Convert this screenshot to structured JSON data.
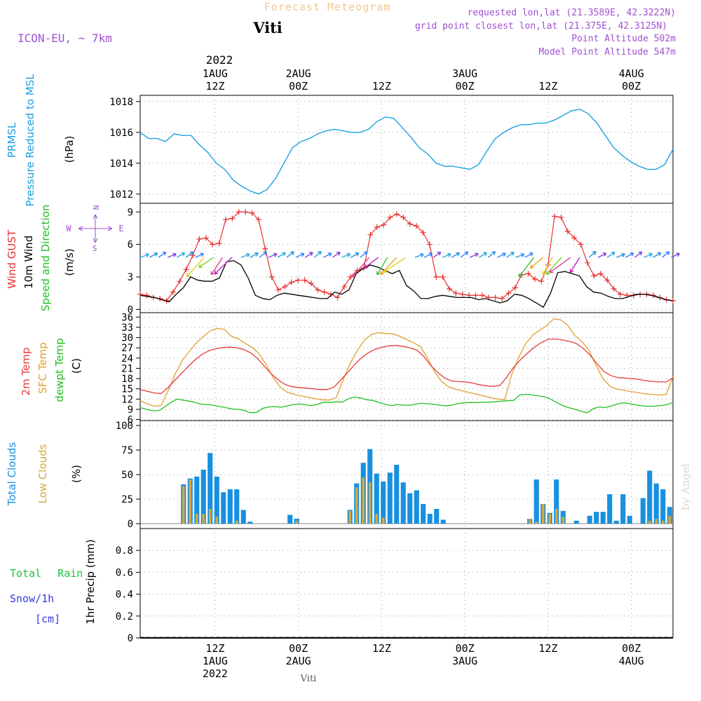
{
  "header": {
    "top_title": "Forecast Meteogram",
    "location": "Viti",
    "model": "ICON-EU, ~ 7km",
    "requested": "requested lon,lat (21.3589E, 42.3222N)",
    "grid_point": "grid point closest lon,lat (21.375E, 42.3125N)",
    "point_alt": "Point Altitude 502m",
    "model_alt": "Model Point Altitude 547m",
    "credit": "by Angel",
    "footer": "Viti"
  },
  "colors": {
    "pressure": "#1ca0e0",
    "gust": "#e83030",
    "wind": "#000000",
    "temp2m": "#e83a3a",
    "sfc": "#e0a030",
    "dewpt": "#20c020",
    "total_cloud": "#1890e0",
    "low_cloud": "#d4a840",
    "rain": "#20c040",
    "snow": "#3838e0",
    "label_purple": "#a050d0"
  },
  "time_axis": {
    "x_range": [
      0,
      64
    ],
    "top_year_label": "2022",
    "ticks": [
      {
        "x": 9,
        "top": "1AUG",
        "bottom": "12Z",
        "bottom2": "1AUG",
        "bottom3": "2022"
      },
      {
        "x": 19,
        "top": "2AUG",
        "bottom": "00Z",
        "bottom2": "2AUG"
      },
      {
        "x": 29,
        "top": "",
        "bottom": "12Z",
        "bottom2": ""
      },
      {
        "x": 39,
        "top": "3AUG",
        "bottom": "00Z",
        "bottom2": "3AUG"
      },
      {
        "x": 49,
        "top": "",
        "bottom": "12Z",
        "bottom2": ""
      },
      {
        "x": 59,
        "top": "4AUG",
        "bottom": "00Z",
        "bottom2": "4AUG"
      }
    ],
    "top_hours": [
      "12Z",
      "00Z",
      "12Z",
      "00Z",
      "12Z",
      "00Z"
    ]
  },
  "chart_data": [
    {
      "type": "line",
      "id": "pressure",
      "ylabel_lines": [
        "PRMSL",
        "Pressure Reduced to MSL"
      ],
      "unit": "(hPa)",
      "ylim": [
        1011.4,
        1018.4
      ],
      "yticks": [
        1012,
        1014,
        1016,
        1018
      ],
      "series": [
        {
          "values": [
            1016.0,
            1015.6,
            1015.6,
            1015.4,
            1015.9,
            1015.8,
            1015.8,
            1015.2,
            1014.7,
            1014.0,
            1013.6,
            1012.9,
            1012.5,
            1012.2,
            1012.0,
            1012.3,
            1013.0,
            1014.0,
            1015.0,
            1015.4,
            1015.6,
            1015.9,
            1016.1,
            1016.2,
            1016.1,
            1016.0,
            1016.0,
            1016.2,
            1016.7,
            1017.0,
            1016.9,
            1016.3,
            1015.7,
            1015.0,
            1014.6,
            1014.0,
            1013.8,
            1013.8,
            1013.7,
            1013.6,
            1013.9,
            1014.8,
            1015.6,
            1016.0,
            1016.3,
            1016.5,
            1016.5,
            1016.6,
            1016.6,
            1016.8,
            1017.1,
            1017.4,
            1017.5,
            1017.2,
            1016.6,
            1015.8,
            1015.0,
            1014.5,
            1014.1,
            1013.8,
            1013.6,
            1013.6,
            1013.9,
            1014.9
          ]
        }
      ]
    },
    {
      "type": "line",
      "id": "wind",
      "ylabel_lines": [
        "Wind GUST",
        "10m Wind",
        "Speed and Direction"
      ],
      "unit": "(m/s)",
      "compass": [
        "N",
        "W",
        "E",
        "S"
      ],
      "ylim": [
        -0.3,
        9.8
      ],
      "yticks": [
        0,
        3,
        6,
        9
      ],
      "series": [
        {
          "name": "Wind GUST",
          "values": [
            1.4,
            1.3,
            1.1,
            1.0,
            0.8,
            1.6,
            2.6,
            3.7,
            5.0,
            6.5,
            6.6,
            6.0,
            6.1,
            8.3,
            8.4,
            9.0,
            9.0,
            8.9,
            8.3,
            5.6,
            3.0,
            1.8,
            2.1,
            2.5,
            2.7,
            2.7,
            2.4,
            1.8,
            1.6,
            1.4,
            1.1,
            2.1,
            3.0,
            3.6,
            3.8,
            6.9,
            7.6,
            7.8,
            8.5,
            8.8,
            8.5,
            7.9,
            7.7,
            7.1,
            6.0,
            3.0,
            3.0,
            1.9,
            1.5,
            1.4,
            1.3,
            1.3,
            1.3,
            1.1,
            1.1,
            1.0,
            1.5,
            2.0,
            3.2,
            3.3,
            2.8,
            2.6,
            4.1,
            8.6,
            8.5,
            7.2,
            6.6,
            6.0,
            4.3,
            3.1,
            3.3,
            2.7,
            1.9,
            1.4,
            1.3,
            1.3,
            1.4,
            1.4,
            1.3,
            1.1,
            0.9,
            0.8
          ]
        },
        {
          "name": "10m Wind",
          "values": [
            1.3,
            1.2,
            1.1,
            0.9,
            0.7,
            1.4,
            2.0,
            3.0,
            2.7,
            2.6,
            2.6,
            2.9,
            4.4,
            4.5,
            4.1,
            2.9,
            1.3,
            1.0,
            0.9,
            1.3,
            1.5,
            1.4,
            1.3,
            1.2,
            1.1,
            1.0,
            1.0,
            1.6,
            1.4,
            1.8,
            3.3,
            3.8,
            4.1,
            3.9,
            3.6,
            3.3,
            3.6,
            2.2,
            1.7,
            1.0,
            1.0,
            1.2,
            1.3,
            1.2,
            1.1,
            1.1,
            1.1,
            0.9,
            1.0,
            0.8,
            0.6,
            0.8,
            1.4,
            1.3,
            1.0,
            0.6,
            0.2,
            1.5,
            3.4,
            3.5,
            3.3,
            3.1,
            2.1,
            1.6,
            1.5,
            1.2,
            1.0,
            1.0,
            1.2,
            1.4,
            1.4,
            1.3,
            1.1,
            0.9,
            0.8
          ]
        }
      ]
    },
    {
      "type": "line",
      "id": "temperature",
      "ylabel_lines": [
        "2m Temp",
        "SFC Temp",
        "dewpt Temp"
      ],
      "unit": "(C)",
      "ylim": [
        5.7,
        37.3
      ],
      "yticks": [
        6,
        9,
        12,
        15,
        18,
        21,
        24,
        27,
        30,
        33,
        36
      ],
      "series": [
        {
          "name": "2m Temp",
          "values": [
            14.8,
            14.3,
            13.8,
            13.6,
            15.3,
            17.5,
            19.6,
            21.7,
            23.6,
            25.2,
            26.2,
            26.8,
            27.1,
            27.2,
            27.0,
            26.5,
            25.5,
            23.8,
            21.5,
            19.3,
            17.5,
            16.2,
            15.6,
            15.4,
            15.2,
            15.0,
            14.8,
            14.8,
            15.5,
            17.6,
            19.8,
            22.1,
            24.1,
            25.6,
            26.6,
            27.2,
            27.6,
            27.7,
            27.4,
            27.0,
            26.3,
            24.5,
            21.8,
            19.8,
            18.2,
            17.3,
            17.1,
            17.0,
            16.7,
            16.2,
            15.9,
            15.7,
            16.0,
            18.5,
            21.4,
            23.6,
            25.5,
            27.2,
            28.6,
            29.5,
            29.6,
            29.3,
            28.9,
            28.3,
            26.9,
            24.9,
            22.4,
            20.1,
            18.9,
            18.3,
            18.2,
            18.0,
            17.8,
            17.4,
            17.2,
            17.0,
            17.0,
            18.2
          ]
        },
        {
          "name": "SFC Temp",
          "values": [
            11.5,
            10.6,
            9.9,
            10.2,
            14.5,
            19.4,
            23.3,
            26.0,
            28.4,
            30.3,
            32.0,
            32.7,
            32.4,
            30.4,
            29.6,
            28.3,
            27.1,
            25.2,
            22.0,
            18.2,
            15.4,
            14.0,
            13.4,
            12.9,
            12.5,
            12.1,
            11.8,
            11.7,
            12.5,
            17.9,
            22.6,
            26.3,
            29.3,
            30.9,
            31.5,
            31.2,
            31.1,
            30.4,
            29.5,
            28.5,
            27.3,
            24.0,
            20.0,
            17.1,
            15.6,
            14.9,
            14.4,
            13.9,
            13.4,
            12.9,
            12.4,
            12.0,
            11.9,
            19.2,
            24.3,
            28.2,
            30.8,
            32.2,
            33.5,
            35.5,
            35.2,
            33.6,
            30.6,
            28.9,
            26.3,
            22.0,
            18.0,
            15.8,
            14.9,
            14.6,
            14.2,
            13.9,
            13.5,
            13.4,
            13.2,
            13.3,
            18.5
          ]
        },
        {
          "name": "dewpt Temp",
          "values": [
            9.5,
            9.0,
            8.6,
            8.6,
            9.7,
            11.0,
            12.0,
            11.7,
            11.4,
            11.0,
            10.5,
            10.4,
            10.2,
            9.8,
            9.5,
            9.1,
            9.0,
            8.7,
            8.0,
            8.1,
            9.3,
            9.7,
            9.8,
            9.6,
            10.0,
            10.4,
            10.6,
            10.3,
            10.1,
            10.5,
            11.1,
            11.0,
            11.2,
            11.1,
            12.1,
            12.6,
            12.3,
            11.8,
            11.6,
            11.0,
            10.5,
            10.1,
            10.4,
            10.2,
            10.2,
            10.5,
            10.8,
            10.6,
            10.5,
            10.2,
            10.0,
            10.3,
            10.7,
            10.9,
            11.0,
            11.0,
            11.1,
            11.1,
            11.2,
            11.4,
            11.5,
            11.6,
            13.2,
            13.4,
            13.2,
            12.9,
            12.7,
            12.0,
            11.0,
            10.1,
            9.5,
            9.0,
            8.4,
            8.0,
            9.2,
            9.7,
            9.5,
            10.0,
            10.6,
            10.9,
            10.6,
            10.3,
            10.0,
            9.9,
            9.9,
            10.1,
            10.4,
            11.0
          ]
        }
      ]
    },
    {
      "type": "bar",
      "id": "clouds",
      "ylabel_lines": [
        "Total Clouds",
        "Low Clouds"
      ],
      "unit": "(%)",
      "ylim": [
        -5,
        105
      ],
      "yticks": [
        0,
        25,
        50,
        75,
        100
      ],
      "bar_start_x": 0.5,
      "bar_step": 1,
      "series": [
        {
          "name": "Total Clouds",
          "values": [
            0,
            0,
            0,
            0,
            0,
            0,
            40,
            46,
            48,
            55,
            72,
            48,
            32,
            35,
            35,
            14,
            2,
            0,
            0,
            0,
            0,
            0,
            9,
            5,
            0,
            0,
            0,
            0,
            0,
            0,
            0,
            14,
            41,
            62,
            76,
            51,
            43,
            52,
            60,
            42,
            31,
            34,
            20,
            10,
            15,
            4,
            0,
            0,
            0,
            0,
            0,
            0,
            0,
            0,
            0,
            0,
            0,
            0,
            5,
            45,
            20,
            11,
            45,
            13,
            0,
            3,
            0,
            8,
            12,
            12,
            30,
            3,
            30,
            8,
            0,
            26,
            54,
            41,
            35,
            17
          ]
        },
        {
          "name": "Low Clouds",
          "values": [
            0,
            0,
            0,
            0,
            0,
            0,
            38,
            45,
            10,
            10,
            15,
            7,
            0,
            0,
            3,
            0,
            0,
            0,
            0,
            0,
            0,
            0,
            0,
            3,
            0,
            0,
            0,
            0,
            0,
            0,
            0,
            13,
            37,
            47,
            42,
            10,
            6,
            0,
            0,
            0,
            0,
            0,
            0,
            0,
            0,
            0,
            0,
            0,
            0,
            0,
            0,
            0,
            0,
            0,
            0,
            0,
            0,
            0,
            5,
            2,
            20,
            10,
            15,
            7,
            0,
            0,
            0,
            0,
            0,
            0,
            0,
            0,
            0,
            0,
            0,
            0,
            3,
            5,
            3,
            8
          ]
        }
      ]
    },
    {
      "type": "bar",
      "id": "precip",
      "ylabel_lines": [
        "Total Rain",
        "Snow/1h",
        "[cm]"
      ],
      "unit": "1hr Precip (mm)",
      "ylim": [
        0,
        1.0
      ],
      "yticks": [
        0,
        0.2,
        0.4,
        0.6,
        0.8
      ],
      "series": [
        {
          "name": "Total Rain",
          "values": []
        }
      ]
    }
  ]
}
